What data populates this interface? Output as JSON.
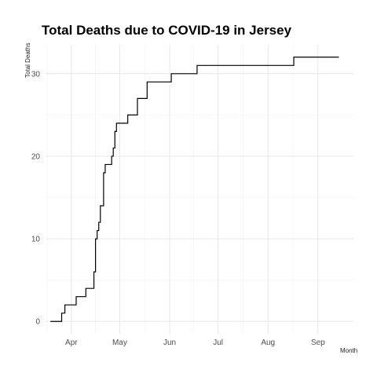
{
  "chart_data": {
    "type": "line",
    "title": "Total Deaths due to COVID-19 in Jersey",
    "xlabel": "Month",
    "ylabel": "Total Deaths",
    "step": true,
    "grid": true,
    "legend": "none",
    "x_ticks": [
      {
        "date": "2020-04-01",
        "label": "Apr"
      },
      {
        "date": "2020-05-01",
        "label": "May"
      },
      {
        "date": "2020-06-01",
        "label": "Jun"
      },
      {
        "date": "2020-07-01",
        "label": "Jul"
      },
      {
        "date": "2020-08-01",
        "label": "Aug"
      },
      {
        "date": "2020-09-01",
        "label": "Sep"
      }
    ],
    "y_ticks": [
      0,
      10,
      20,
      30
    ],
    "xlim": [
      "2020-03-16",
      "2020-09-23"
    ],
    "ylim": [
      -1.5,
      33.5
    ],
    "series": [
      {
        "color": "#000000",
        "points": [
          {
            "x": "2020-03-19",
            "y": 0
          },
          {
            "x": "2020-03-26",
            "y": 1
          },
          {
            "x": "2020-03-28",
            "y": 2
          },
          {
            "x": "2020-04-04",
            "y": 3
          },
          {
            "x": "2020-04-10",
            "y": 4
          },
          {
            "x": "2020-04-15",
            "y": 6
          },
          {
            "x": "2020-04-16",
            "y": 10
          },
          {
            "x": "2020-04-17",
            "y": 11
          },
          {
            "x": "2020-04-18",
            "y": 12
          },
          {
            "x": "2020-04-19",
            "y": 14
          },
          {
            "x": "2020-04-21",
            "y": 18
          },
          {
            "x": "2020-04-22",
            "y": 19
          },
          {
            "x": "2020-04-26",
            "y": 20
          },
          {
            "x": "2020-04-27",
            "y": 21
          },
          {
            "x": "2020-04-28",
            "y": 23
          },
          {
            "x": "2020-04-29",
            "y": 24
          },
          {
            "x": "2020-05-06",
            "y": 25
          },
          {
            "x": "2020-05-12",
            "y": 27
          },
          {
            "x": "2020-05-18",
            "y": 29
          },
          {
            "x": "2020-06-02",
            "y": 30
          },
          {
            "x": "2020-06-18",
            "y": 31
          },
          {
            "x": "2020-08-17",
            "y": 32
          },
          {
            "x": "2020-09-14",
            "y": 32
          }
        ]
      }
    ]
  }
}
